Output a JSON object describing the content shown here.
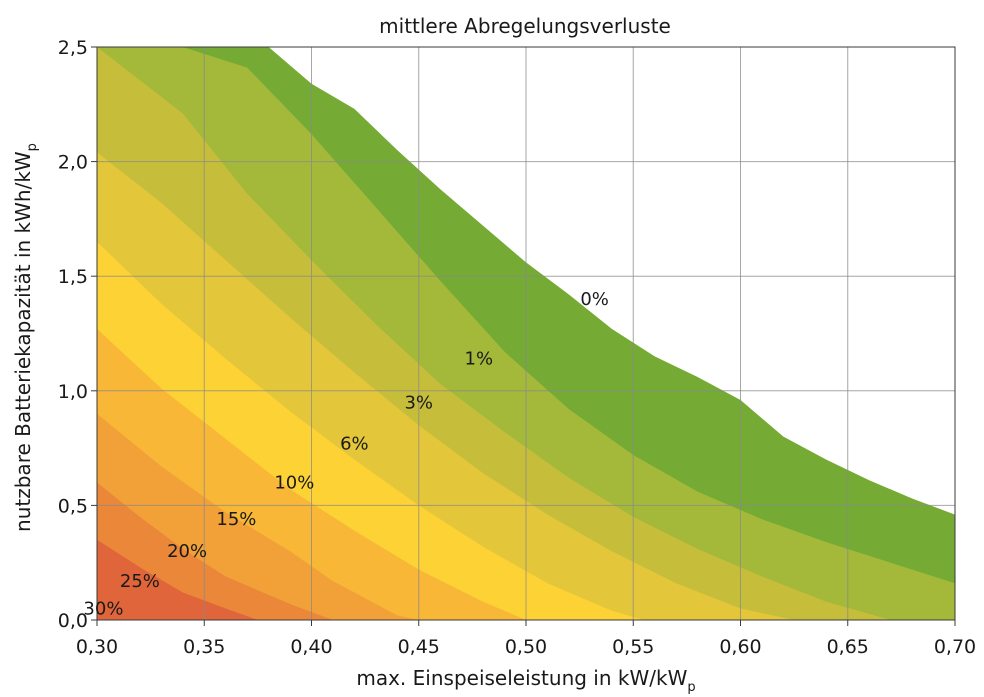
{
  "chart_data": {
    "type": "contour",
    "title": "mittlere Abregelungsverluste",
    "xlabel_main": "max. Einspeiseleistung in kW/kW",
    "xlabel_sub": "p",
    "ylabel_main": "nutzbare Batteriekapazität in kWh/kW",
    "ylabel_sub": "p",
    "xlim": [
      0.3,
      0.7
    ],
    "ylim": [
      0.0,
      2.5
    ],
    "x_ticks": [
      0.3,
      0.35,
      0.4,
      0.45,
      0.5,
      0.55,
      0.6,
      0.65,
      0.7
    ],
    "x_tick_labels": [
      "0,30",
      "0,35",
      "0,40",
      "0,45",
      "0,50",
      "0,55",
      "0,60",
      "0,65",
      "0,70"
    ],
    "y_ticks": [
      0.0,
      0.5,
      1.0,
      1.5,
      2.0,
      2.5
    ],
    "y_tick_labels": [
      "0,0",
      "0,5",
      "1,0",
      "1,5",
      "2,0",
      "2,5"
    ],
    "grid": true,
    "levels": [
      {
        "label": "0%",
        "color": "#75ab34",
        "boundary": [
          [
            0.38,
            2.5
          ],
          [
            0.4,
            2.34
          ],
          [
            0.42,
            2.23
          ],
          [
            0.44,
            2.05
          ],
          [
            0.46,
            1.88
          ],
          [
            0.48,
            1.72
          ],
          [
            0.5,
            1.56
          ],
          [
            0.52,
            1.42
          ],
          [
            0.54,
            1.27
          ],
          [
            0.56,
            1.15
          ],
          [
            0.58,
            1.06
          ],
          [
            0.6,
            0.96
          ],
          [
            0.62,
            0.8
          ],
          [
            0.64,
            0.7
          ],
          [
            0.66,
            0.61
          ],
          [
            0.68,
            0.53
          ],
          [
            0.7,
            0.46
          ]
        ]
      },
      {
        "label": "1%",
        "color": "#a4b83a",
        "boundary": [
          [
            0.3,
            2.5
          ],
          [
            0.34,
            2.5
          ],
          [
            0.37,
            2.41
          ],
          [
            0.4,
            2.12
          ],
          [
            0.43,
            1.8
          ],
          [
            0.46,
            1.48
          ],
          [
            0.49,
            1.17
          ],
          [
            0.52,
            0.92
          ],
          [
            0.55,
            0.72
          ],
          [
            0.58,
            0.56
          ],
          [
            0.61,
            0.44
          ],
          [
            0.64,
            0.34
          ],
          [
            0.67,
            0.25
          ],
          [
            0.7,
            0.16
          ]
        ]
      },
      {
        "label": "3%",
        "color": "#c6be3a",
        "boundary": [
          [
            0.3,
            2.5
          ],
          [
            0.34,
            2.21
          ],
          [
            0.37,
            1.86
          ],
          [
            0.4,
            1.57
          ],
          [
            0.43,
            1.29
          ],
          [
            0.46,
            1.03
          ],
          [
            0.49,
            0.82
          ],
          [
            0.52,
            0.62
          ],
          [
            0.55,
            0.45
          ],
          [
            0.58,
            0.31
          ],
          [
            0.61,
            0.19
          ],
          [
            0.64,
            0.08
          ],
          [
            0.67,
            0.0
          ],
          [
            0.7,
            0.0
          ]
        ]
      },
      {
        "label": "6%",
        "color": "#e3c63a",
        "boundary": [
          [
            0.3,
            2.04
          ],
          [
            0.33,
            1.82
          ],
          [
            0.36,
            1.57
          ],
          [
            0.39,
            1.32
          ],
          [
            0.42,
            1.08
          ],
          [
            0.45,
            0.85
          ],
          [
            0.48,
            0.64
          ],
          [
            0.51,
            0.46
          ],
          [
            0.54,
            0.3
          ],
          [
            0.57,
            0.16
          ],
          [
            0.6,
            0.05
          ],
          [
            0.625,
            0.0
          ]
        ]
      },
      {
        "label": "10%",
        "color": "#fdd234",
        "boundary": [
          [
            0.3,
            1.65
          ],
          [
            0.33,
            1.38
          ],
          [
            0.36,
            1.14
          ],
          [
            0.39,
            0.91
          ],
          [
            0.42,
            0.7
          ],
          [
            0.45,
            0.5
          ],
          [
            0.48,
            0.32
          ],
          [
            0.51,
            0.16
          ],
          [
            0.54,
            0.04
          ],
          [
            0.555,
            0.0
          ]
        ]
      },
      {
        "label": "15%",
        "color": "#f8b737",
        "boundary": [
          [
            0.3,
            1.27
          ],
          [
            0.33,
            1.01
          ],
          [
            0.36,
            0.79
          ],
          [
            0.39,
            0.57
          ],
          [
            0.42,
            0.39
          ],
          [
            0.45,
            0.22
          ],
          [
            0.48,
            0.08
          ],
          [
            0.5,
            0.0
          ]
        ]
      },
      {
        "label": "20%",
        "color": "#f2a138",
        "boundary": [
          [
            0.3,
            0.9
          ],
          [
            0.33,
            0.67
          ],
          [
            0.36,
            0.47
          ],
          [
            0.39,
            0.3
          ],
          [
            0.41,
            0.17
          ],
          [
            0.44,
            0.02
          ],
          [
            0.45,
            0.0
          ]
        ]
      },
      {
        "label": "25%",
        "color": "#ea8739",
        "boundary": [
          [
            0.3,
            0.6
          ],
          [
            0.32,
            0.45
          ],
          [
            0.34,
            0.31
          ],
          [
            0.36,
            0.19
          ],
          [
            0.39,
            0.07
          ],
          [
            0.41,
            0.0
          ]
        ]
      },
      {
        "label": "30%",
        "color": "#e0653a",
        "boundary": [
          [
            0.3,
            0.35
          ],
          [
            0.32,
            0.23
          ],
          [
            0.34,
            0.12
          ],
          [
            0.36,
            0.05
          ],
          [
            0.375,
            0.0
          ]
        ]
      }
    ],
    "contour_labels": [
      {
        "text": "0%",
        "x": 0.532,
        "y": 1.4
      },
      {
        "text": "1%",
        "x": 0.478,
        "y": 1.14
      },
      {
        "text": "3%",
        "x": 0.45,
        "y": 0.95
      },
      {
        "text": "6%",
        "x": 0.42,
        "y": 0.77
      },
      {
        "text": "10%",
        "x": 0.392,
        "y": 0.6
      },
      {
        "text": "15%",
        "x": 0.365,
        "y": 0.44
      },
      {
        "text": "20%",
        "x": 0.342,
        "y": 0.3
      },
      {
        "text": "25%",
        "x": 0.32,
        "y": 0.17
      },
      {
        "text": "30%",
        "x": 0.303,
        "y": 0.05
      }
    ]
  }
}
